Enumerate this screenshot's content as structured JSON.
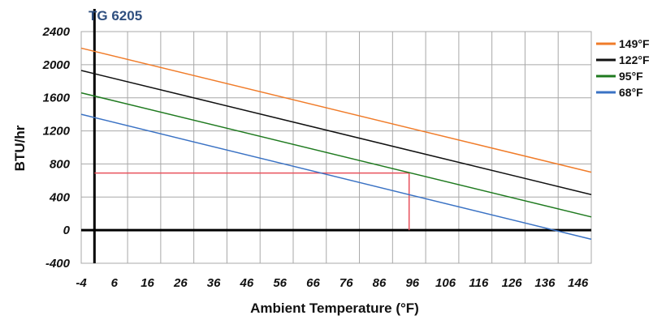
{
  "chart_data": {
    "type": "line",
    "title": "TG 6205",
    "xlabel": "Ambient Temperature (°F)",
    "ylabel": "BTU/hr",
    "xlim": [
      -4,
      150
    ],
    "ylim": [
      -400,
      2400
    ],
    "x_ticks": [
      -4,
      6,
      16,
      26,
      36,
      46,
      56,
      66,
      76,
      86,
      96,
      106,
      116,
      126,
      136,
      146
    ],
    "y_ticks": [
      -400,
      0,
      400,
      800,
      1200,
      1600,
      2000,
      2400
    ],
    "x_tick_labels": [
      "-4",
      "6",
      "16",
      "26",
      "36",
      "46",
      "56",
      "66",
      "76",
      "86",
      "96",
      "106",
      "116",
      "126",
      "136",
      "146"
    ],
    "y_tick_labels": [
      "-400",
      "0",
      "400",
      "800",
      "1200",
      "1600",
      "2000",
      "2400"
    ],
    "grid": true,
    "legend_position": "top-right",
    "series": [
      {
        "name": "149°F",
        "color": "#f07c2a",
        "x": [
          -4,
          150
        ],
        "y": [
          2200,
          700
        ]
      },
      {
        "name": "122°F",
        "color": "#111111",
        "x": [
          -4,
          150
        ],
        "y": [
          1930,
          430
        ]
      },
      {
        "name": "95°F",
        "color": "#1f7a1f",
        "x": [
          -4,
          150
        ],
        "y": [
          1660,
          160
        ]
      },
      {
        "name": "68°F",
        "color": "#3a72c4",
        "x": [
          -4,
          150
        ],
        "y": [
          1400,
          -110
        ]
      }
    ],
    "annotations": [
      {
        "type": "horizontal",
        "color": "#e8505b",
        "y": 690,
        "x_from": 0,
        "x_to": 95
      },
      {
        "type": "vertical",
        "color": "#e8505b",
        "x": 95,
        "y_from": 690,
        "y_to": 0
      }
    ],
    "reference_lines": [
      {
        "axis": "y",
        "value": 0
      },
      {
        "axis": "x",
        "value": 0
      }
    ]
  }
}
